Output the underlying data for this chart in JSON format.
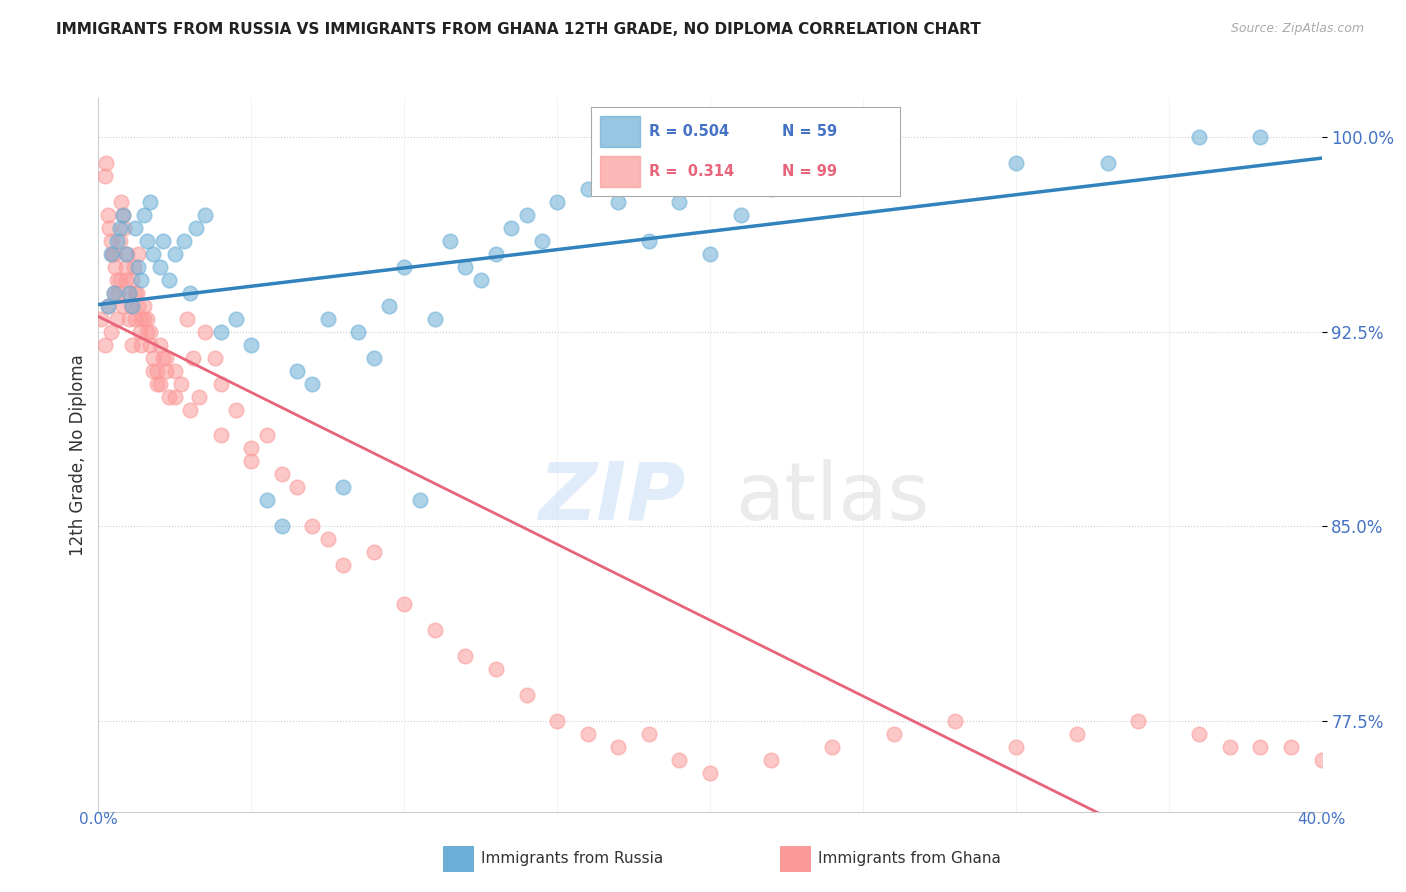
{
  "title": "IMMIGRANTS FROM RUSSIA VS IMMIGRANTS FROM GHANA 12TH GRADE, NO DIPLOMA CORRELATION CHART",
  "source": "Source: ZipAtlas.com",
  "ylabel": "12th Grade, No Diploma",
  "xlim": [
    0.0,
    40.0
  ],
  "ylim": [
    74.0,
    101.5
  ],
  "legend_russia": "Immigrants from Russia",
  "legend_ghana": "Immigrants from Ghana",
  "r_russia": "0.504",
  "n_russia": "59",
  "r_ghana": "0.314",
  "n_ghana": "99",
  "russia_color": "#6baed6",
  "ghana_color": "#fb9a99",
  "russia_line_color": "#3182bd",
  "ghana_line_color": "#e8647a",
  "background_color": "#ffffff",
  "russia_x": [
    0.3,
    0.4,
    0.5,
    0.6,
    0.7,
    0.8,
    0.9,
    1.0,
    1.1,
    1.2,
    1.3,
    1.4,
    1.5,
    1.6,
    1.7,
    1.8,
    2.0,
    2.1,
    2.3,
    2.5,
    2.8,
    3.0,
    3.2,
    3.5,
    4.0,
    4.5,
    5.0,
    5.5,
    6.0,
    6.5,
    7.0,
    7.5,
    8.0,
    8.5,
    9.0,
    9.5,
    10.0,
    10.5,
    11.0,
    11.5,
    12.0,
    12.5,
    13.0,
    13.5,
    14.0,
    14.5,
    15.0,
    16.0,
    17.0,
    18.0,
    19.0,
    20.0,
    21.0,
    22.0,
    25.0,
    30.0,
    33.0,
    36.0,
    38.0
  ],
  "russia_y": [
    93.5,
    95.5,
    94.0,
    96.0,
    96.5,
    97.0,
    95.5,
    94.0,
    93.5,
    96.5,
    95.0,
    94.5,
    97.0,
    96.0,
    97.5,
    95.5,
    95.0,
    96.0,
    94.5,
    95.5,
    96.0,
    94.0,
    96.5,
    97.0,
    92.5,
    93.0,
    92.0,
    86.0,
    85.0,
    91.0,
    90.5,
    93.0,
    86.5,
    92.5,
    91.5,
    93.5,
    95.0,
    86.0,
    93.0,
    96.0,
    95.0,
    94.5,
    95.5,
    96.5,
    97.0,
    96.0,
    97.5,
    98.0,
    97.5,
    96.0,
    97.5,
    95.5,
    97.0,
    98.0,
    98.5,
    99.0,
    99.0,
    100.0,
    100.0
  ],
  "ghana_x": [
    0.1,
    0.2,
    0.25,
    0.3,
    0.35,
    0.4,
    0.45,
    0.5,
    0.55,
    0.6,
    0.65,
    0.7,
    0.75,
    0.8,
    0.85,
    0.9,
    0.95,
    1.0,
    1.05,
    1.1,
    1.15,
    1.2,
    1.25,
    1.3,
    1.35,
    1.4,
    1.5,
    1.6,
    1.7,
    1.8,
    1.9,
    2.0,
    2.1,
    2.2,
    2.3,
    2.5,
    2.7,
    2.9,
    3.1,
    3.3,
    3.5,
    3.8,
    4.0,
    4.5,
    5.0,
    5.5,
    6.0,
    6.5,
    7.0,
    7.5,
    8.0,
    9.0,
    10.0,
    11.0,
    12.0,
    13.0,
    14.0,
    15.0,
    16.0,
    17.0,
    18.0,
    19.0,
    20.0,
    22.0,
    24.0,
    26.0,
    28.0,
    30.0,
    32.0,
    34.0,
    36.0,
    37.0,
    38.0,
    39.0,
    40.0,
    0.2,
    0.3,
    0.4,
    0.5,
    0.6,
    0.7,
    0.8,
    0.9,
    1.0,
    1.1,
    1.2,
    1.3,
    1.4,
    1.5,
    1.6,
    1.7,
    1.8,
    1.9,
    2.0,
    2.2,
    2.5,
    3.0,
    4.0,
    5.0
  ],
  "ghana_y": [
    93.0,
    98.5,
    99.0,
    97.0,
    96.5,
    96.0,
    95.5,
    95.5,
    95.0,
    94.5,
    94.0,
    96.0,
    97.5,
    97.0,
    96.5,
    95.0,
    95.5,
    94.0,
    93.5,
    94.5,
    95.0,
    93.0,
    94.0,
    95.5,
    92.5,
    93.0,
    93.5,
    93.0,
    92.5,
    91.0,
    90.5,
    92.0,
    91.5,
    91.0,
    90.0,
    91.0,
    90.5,
    93.0,
    91.5,
    90.0,
    92.5,
    91.5,
    90.5,
    89.5,
    88.0,
    88.5,
    87.0,
    86.5,
    85.0,
    84.5,
    83.5,
    84.0,
    82.0,
    81.0,
    80.0,
    79.5,
    78.5,
    77.5,
    77.0,
    76.5,
    77.0,
    76.0,
    75.5,
    76.0,
    76.5,
    77.0,
    77.5,
    76.5,
    77.0,
    77.5,
    77.0,
    76.5,
    76.5,
    76.5,
    76.0,
    92.0,
    93.5,
    92.5,
    94.0,
    93.0,
    94.5,
    93.5,
    94.5,
    93.0,
    92.0,
    94.0,
    93.5,
    92.0,
    93.0,
    92.5,
    92.0,
    91.5,
    91.0,
    90.5,
    91.5,
    90.0,
    89.5,
    88.5,
    87.5
  ]
}
